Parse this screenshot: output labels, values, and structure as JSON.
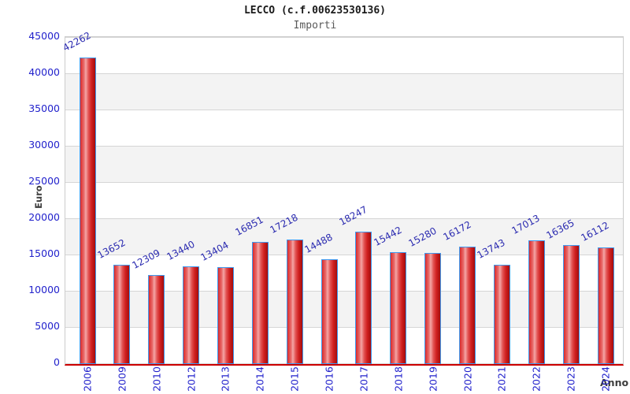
{
  "header": {
    "title": "LECCO (c.f.00623530136)",
    "subtitle": "Importi"
  },
  "chart_data": {
    "type": "bar",
    "title": "LECCO (c.f.00623530136)",
    "subtitle": "Importi",
    "xlabel": "Anno",
    "ylabel": "Euro",
    "categories": [
      "2006",
      "2009",
      "2010",
      "2012",
      "2013",
      "2014",
      "2015",
      "2016",
      "2017",
      "2018",
      "2019",
      "2020",
      "2021",
      "2022",
      "2023",
      "2024"
    ],
    "values": [
      42262,
      13652,
      12309,
      13440,
      13404,
      16851,
      17218,
      14488,
      18247,
      15442,
      15280,
      16172,
      13743,
      17013,
      16365,
      16112
    ],
    "ylim": [
      0,
      45000
    ],
    "yticks": [
      0,
      5000,
      10000,
      15000,
      20000,
      25000,
      30000,
      35000,
      40000,
      45000
    ],
    "grid": "horizontal-bands-alternating",
    "legend": "none",
    "colors": {
      "tick_label_blue": "#2222cc",
      "value_label_blue": "#2a2ab0",
      "bar_fill_main": "#d02020",
      "bar_fill_highlight": "#f4a6a6",
      "bar_border": "#3e9af0",
      "baseline_red": "#cc0000",
      "band_gray": "#f3f3f3",
      "grid_line": "#d2d2d2",
      "axis_title_gray": "#3d3d3d"
    }
  }
}
